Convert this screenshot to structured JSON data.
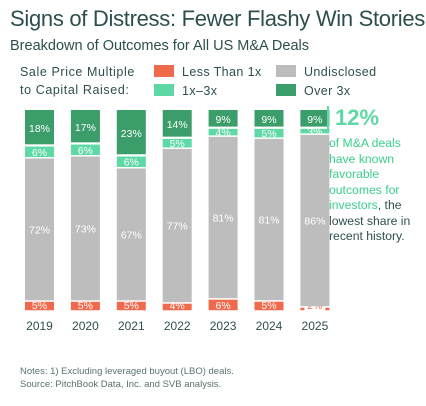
{
  "header": {
    "title": "Signs of Distress: Fewer Flashy Win Stories",
    "subtitle": "Breakdown of Outcomes for All US M&A Deals"
  },
  "legend": {
    "title_line1": "Sale Price Multiple",
    "title_line2": "to Capital Raised:",
    "items": [
      {
        "label": "Less Than 1x",
        "color": "#ef6a4c"
      },
      {
        "label": "Undisclosed",
        "color": "#bdbdbd"
      },
      {
        "label": "1x–3x",
        "color": "#5ed8a4"
      },
      {
        "label": "Over 3x",
        "color": "#3a9d6a"
      }
    ]
  },
  "annotation": {
    "big": "12%",
    "text_a": "of M&A deals have known favorable outcomes for investors",
    "text_b": ", the lowest share in recent history."
  },
  "notes": {
    "line1": "Notes: 1) Excluding leveraged buyout (LBO) deals.",
    "line2": "Source: PitchBook Data, Inc. and SVB analysis."
  },
  "chart_data": {
    "type": "bar",
    "stacked": true,
    "categories": [
      "2019",
      "2020",
      "2021",
      "2022",
      "2023",
      "2024",
      "2025"
    ],
    "ylim": [
      0,
      100
    ],
    "series": [
      {
        "name": "Less Than 1x",
        "color": "#ef6a4c",
        "values": [
          5,
          5,
          5,
          4,
          6,
          5,
          2
        ]
      },
      {
        "name": "Undisclosed",
        "color": "#bdbdbd",
        "values": [
          72,
          73,
          67,
          77,
          81,
          81,
          86
        ]
      },
      {
        "name": "1x–3x",
        "color": "#5ed8a4",
        "values": [
          6,
          6,
          6,
          5,
          4,
          5,
          3
        ]
      },
      {
        "name": "Over 3x",
        "color": "#3a9d6a",
        "values": [
          18,
          17,
          23,
          14,
          9,
          9,
          9
        ]
      }
    ],
    "labels": [
      [
        "5%",
        "5%",
        "5%",
        "4%",
        "6%",
        "5%",
        "2%"
      ],
      [
        "72%",
        "73%",
        "67%",
        "77%",
        "81%",
        "81%",
        "86%"
      ],
      [
        "6%",
        "6%",
        "6%",
        "5%",
        "4%",
        "5%",
        "3%"
      ],
      [
        "18%",
        "17%",
        "23%",
        "14%",
        "9%",
        "9%",
        "9%"
      ]
    ],
    "highlight_category": "2025"
  }
}
